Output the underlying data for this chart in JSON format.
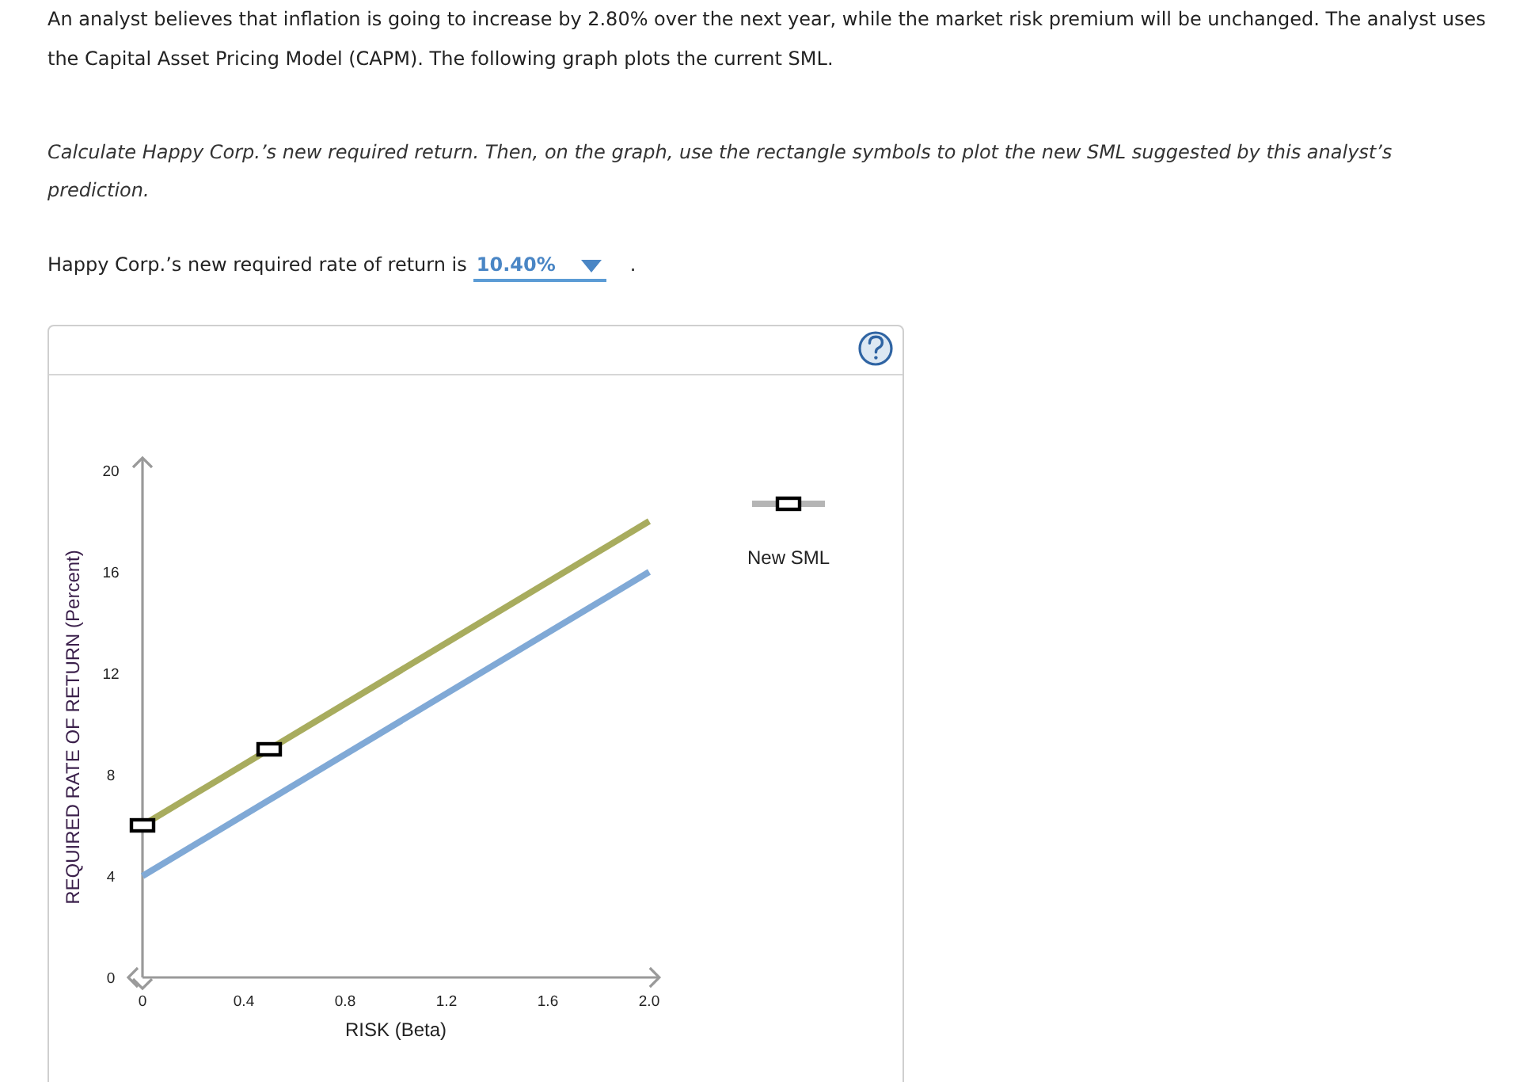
{
  "chart_data": {
    "type": "line",
    "title": "An analyst believes that inflation is going to increase by 2.80% over the next year, while the market risk premium will be unchanged. The analyst uses the Capital Asset Pricing Model (CAPM). The following graph plots the current SML.",
    "subtitle": "Calculate Happy Corp.’s new required return. Then, on the graph, use the rectangle symbols to plot the new SML suggested by this analyst’s prediction.",
    "annotations": [
      "Happy Corp.’s new required rate of return is",
      "10.40%",
      "."
    ],
    "xlabel": "RISK (Beta)",
    "ylabel": "REQUIRED RATE OF RETURN (Percent)",
    "xlim": [
      0,
      2.04
    ],
    "ylim": [
      0,
      20.5
    ],
    "xticks": [
      0,
      0.4,
      0.8,
      1.2,
      1.6,
      {
        "value": 2,
        "label": "2.0"
      }
    ],
    "yticks": [
      0,
      4,
      8,
      12,
      16,
      20
    ],
    "legend": "top right",
    "series": [
      {
        "color": "#80a9d6",
        "x": [
          0,
          2
        ],
        "values": [
          4,
          16
        ]
      },
      {
        "color": "#a8ac5e",
        "x": [
          0,
          2
        ],
        "values": [
          6,
          18
        ]
      },
      {
        "name": "New SML",
        "type": "scatter",
        "marker": "square",
        "color": "#000000",
        "x": [
          0,
          0.5
        ],
        "values": [
          6,
          9
        ]
      }
    ]
  }
}
